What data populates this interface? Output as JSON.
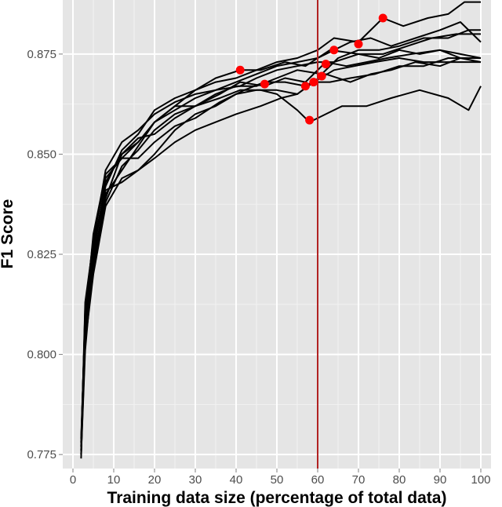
{
  "chart_data": {
    "type": "line",
    "title": "",
    "xlabel": "Training data size (percentage of total data)",
    "ylabel": "F1 Score",
    "xlim": [
      -2.5,
      102.5
    ],
    "ylim": [
      0.7715,
      0.8885
    ],
    "x_ticks": [
      0,
      10,
      20,
      30,
      40,
      50,
      60,
      70,
      80,
      90,
      100
    ],
    "x_tick_labels": [
      "0",
      "10",
      "20",
      "30",
      "40",
      "50",
      "60",
      "70",
      "80",
      "90",
      "100"
    ],
    "y_ticks": [
      0.775,
      0.8,
      0.825,
      0.85,
      0.875
    ],
    "y_tick_labels": [
      "0.775",
      "0.800",
      "0.825",
      "0.850",
      "0.875"
    ],
    "grid": true,
    "background": "#e5e5e5",
    "grid_color": "#ffffff",
    "line_color": "#000000",
    "marker_color": "#ff0000",
    "vline_color": "#b22222",
    "vertical_line_x": 60,
    "series": [
      {
        "points": [
          [
            2,
            0.774
          ],
          [
            3,
            0.812
          ],
          [
            5,
            0.827
          ],
          [
            8,
            0.842
          ],
          [
            12,
            0.851
          ],
          [
            16,
            0.855
          ],
          [
            20,
            0.861
          ],
          [
            25,
            0.864
          ],
          [
            30,
            0.866
          ],
          [
            35,
            0.869
          ],
          [
            41,
            0.871
          ],
          [
            46,
            0.871
          ],
          [
            52,
            0.873
          ],
          [
            57,
            0.872
          ],
          [
            63,
            0.876
          ],
          [
            70,
            0.875
          ],
          [
            75,
            0.874
          ],
          [
            80,
            0.876
          ],
          [
            85,
            0.875
          ],
          [
            90,
            0.876
          ],
          [
            95,
            0.874
          ],
          [
            100,
            0.873
          ]
        ]
      },
      {
        "points": [
          [
            2,
            0.777
          ],
          [
            3,
            0.805
          ],
          [
            5,
            0.823
          ],
          [
            8,
            0.84
          ],
          [
            12,
            0.846
          ],
          [
            16,
            0.852
          ],
          [
            20,
            0.858
          ],
          [
            25,
            0.862
          ],
          [
            30,
            0.862
          ],
          [
            36,
            0.864
          ],
          [
            41,
            0.866
          ],
          [
            46,
            0.866
          ],
          [
            50,
            0.865
          ],
          [
            55,
            0.861
          ],
          [
            58,
            0.858
          ],
          [
            62,
            0.86
          ],
          [
            66,
            0.862
          ],
          [
            72,
            0.862
          ],
          [
            78,
            0.864
          ],
          [
            85,
            0.866
          ],
          [
            92,
            0.864
          ],
          [
            97,
            0.861
          ],
          [
            100,
            0.867
          ]
        ]
      },
      {
        "points": [
          [
            2,
            0.779
          ],
          [
            3,
            0.809
          ],
          [
            5,
            0.83
          ],
          [
            8,
            0.845
          ],
          [
            12,
            0.849
          ],
          [
            16,
            0.849
          ],
          [
            20,
            0.853
          ],
          [
            25,
            0.857
          ],
          [
            30,
            0.859
          ],
          [
            36,
            0.863
          ],
          [
            42,
            0.866
          ],
          [
            47,
            0.868
          ],
          [
            52,
            0.868
          ],
          [
            57,
            0.867
          ],
          [
            62,
            0.87
          ],
          [
            68,
            0.868
          ],
          [
            73,
            0.87
          ],
          [
            78,
            0.871
          ],
          [
            84,
            0.873
          ],
          [
            90,
            0.872
          ],
          [
            95,
            0.874
          ],
          [
            100,
            0.874
          ]
        ]
      },
      {
        "points": [
          [
            2,
            0.775
          ],
          [
            3,
            0.801
          ],
          [
            5,
            0.824
          ],
          [
            8,
            0.839
          ],
          [
            12,
            0.85
          ],
          [
            16,
            0.854
          ],
          [
            20,
            0.855
          ],
          [
            25,
            0.859
          ],
          [
            30,
            0.862
          ],
          [
            36,
            0.865
          ],
          [
            41,
            0.868
          ],
          [
            47,
            0.867
          ],
          [
            52,
            0.869
          ],
          [
            57,
            0.868
          ],
          [
            62,
            0.873
          ],
          [
            67,
            0.872
          ],
          [
            72,
            0.873
          ],
          [
            77,
            0.874
          ],
          [
            83,
            0.875
          ],
          [
            90,
            0.876
          ],
          [
            95,
            0.875
          ],
          [
            100,
            0.874
          ]
        ]
      },
      {
        "points": [
          [
            2,
            0.778
          ],
          [
            3,
            0.808
          ],
          [
            5,
            0.826
          ],
          [
            8,
            0.841
          ],
          [
            12,
            0.843
          ],
          [
            16,
            0.846
          ],
          [
            20,
            0.849
          ],
          [
            25,
            0.853
          ],
          [
            30,
            0.856
          ],
          [
            35,
            0.858
          ],
          [
            40,
            0.86
          ],
          [
            46,
            0.862
          ],
          [
            51,
            0.864
          ],
          [
            55,
            0.865
          ],
          [
            59,
            0.868
          ],
          [
            64,
            0.871
          ],
          [
            69,
            0.872
          ],
          [
            74,
            0.873
          ],
          [
            80,
            0.874
          ],
          [
            86,
            0.873
          ],
          [
            92,
            0.873
          ],
          [
            100,
            0.873
          ]
        ]
      },
      {
        "points": [
          [
            2,
            0.776
          ],
          [
            3,
            0.813
          ],
          [
            5,
            0.828
          ],
          [
            8,
            0.846
          ],
          [
            12,
            0.853
          ],
          [
            16,
            0.856
          ],
          [
            20,
            0.86
          ],
          [
            25,
            0.863
          ],
          [
            30,
            0.865
          ],
          [
            35,
            0.866
          ],
          [
            41,
            0.867
          ],
          [
            45,
            0.869
          ],
          [
            50,
            0.871
          ],
          [
            55,
            0.872
          ],
          [
            60,
            0.873
          ],
          [
            64,
            0.873
          ],
          [
            70,
            0.875
          ],
          [
            76,
            0.875
          ],
          [
            82,
            0.877
          ],
          [
            88,
            0.879
          ],
          [
            94,
            0.88
          ],
          [
            100,
            0.88
          ]
        ]
      },
      {
        "points": [
          [
            2,
            0.776
          ],
          [
            3,
            0.806
          ],
          [
            5,
            0.822
          ],
          [
            8,
            0.838
          ],
          [
            12,
            0.847
          ],
          [
            16,
            0.851
          ],
          [
            20,
            0.856
          ],
          [
            25,
            0.86
          ],
          [
            30,
            0.862
          ],
          [
            35,
            0.865
          ],
          [
            40,
            0.867
          ],
          [
            45,
            0.867
          ],
          [
            50,
            0.869
          ],
          [
            55,
            0.871
          ],
          [
            61,
            0.87
          ],
          [
            65,
            0.874
          ],
          [
            70,
            0.876
          ],
          [
            75,
            0.876
          ],
          [
            80,
            0.877
          ],
          [
            86,
            0.879
          ],
          [
            92,
            0.879
          ],
          [
            97,
            0.881
          ],
          [
            100,
            0.881
          ]
        ]
      },
      {
        "points": [
          [
            2,
            0.777
          ],
          [
            3,
            0.811
          ],
          [
            5,
            0.829
          ],
          [
            8,
            0.844
          ],
          [
            12,
            0.849
          ],
          [
            16,
            0.853
          ],
          [
            20,
            0.858
          ],
          [
            25,
            0.862
          ],
          [
            30,
            0.866
          ],
          [
            35,
            0.868
          ],
          [
            40,
            0.869
          ],
          [
            45,
            0.871
          ],
          [
            50,
            0.873
          ],
          [
            55,
            0.874
          ],
          [
            60,
            0.876
          ],
          [
            64,
            0.879
          ],
          [
            70,
            0.878
          ],
          [
            76,
            0.884
          ],
          [
            81,
            0.882
          ],
          [
            87,
            0.884
          ],
          [
            92,
            0.885
          ],
          [
            96,
            0.888
          ],
          [
            100,
            0.888
          ]
        ]
      },
      {
        "points": [
          [
            2,
            0.778
          ],
          [
            3,
            0.81
          ],
          [
            5,
            0.825
          ],
          [
            8,
            0.843
          ],
          [
            12,
            0.85
          ],
          [
            16,
            0.853
          ],
          [
            20,
            0.858
          ],
          [
            25,
            0.861
          ],
          [
            30,
            0.864
          ],
          [
            35,
            0.866
          ],
          [
            40,
            0.868
          ],
          [
            45,
            0.87
          ],
          [
            50,
            0.872
          ],
          [
            55,
            0.873
          ],
          [
            60,
            0.874
          ],
          [
            64,
            0.876
          ],
          [
            68,
            0.878
          ],
          [
            73,
            0.879
          ],
          [
            78,
            0.877
          ],
          [
            84,
            0.879
          ],
          [
            90,
            0.881
          ],
          [
            95,
            0.883
          ],
          [
            100,
            0.878
          ]
        ]
      },
      {
        "points": [
          [
            2,
            0.775
          ],
          [
            3,
            0.803
          ],
          [
            5,
            0.82
          ],
          [
            8,
            0.837
          ],
          [
            12,
            0.844
          ],
          [
            16,
            0.846
          ],
          [
            20,
            0.85
          ],
          [
            25,
            0.856
          ],
          [
            30,
            0.86
          ],
          [
            35,
            0.862
          ],
          [
            40,
            0.865
          ],
          [
            45,
            0.866
          ],
          [
            50,
            0.866
          ],
          [
            55,
            0.865
          ],
          [
            59,
            0.868
          ],
          [
            63,
            0.868
          ],
          [
            68,
            0.869
          ],
          [
            74,
            0.87
          ],
          [
            80,
            0.872
          ],
          [
            86,
            0.872
          ],
          [
            92,
            0.874
          ],
          [
            100,
            0.874
          ]
        ]
      }
    ],
    "marked_points": [
      {
        "x": 41,
        "y": 0.871
      },
      {
        "x": 47,
        "y": 0.8675
      },
      {
        "x": 57,
        "y": 0.867
      },
      {
        "x": 58,
        "y": 0.8585
      },
      {
        "x": 59,
        "y": 0.868
      },
      {
        "x": 61,
        "y": 0.8695
      },
      {
        "x": 62,
        "y": 0.8725
      },
      {
        "x": 64,
        "y": 0.876
      },
      {
        "x": 70,
        "y": 0.8775
      },
      {
        "x": 76,
        "y": 0.884
      }
    ]
  }
}
